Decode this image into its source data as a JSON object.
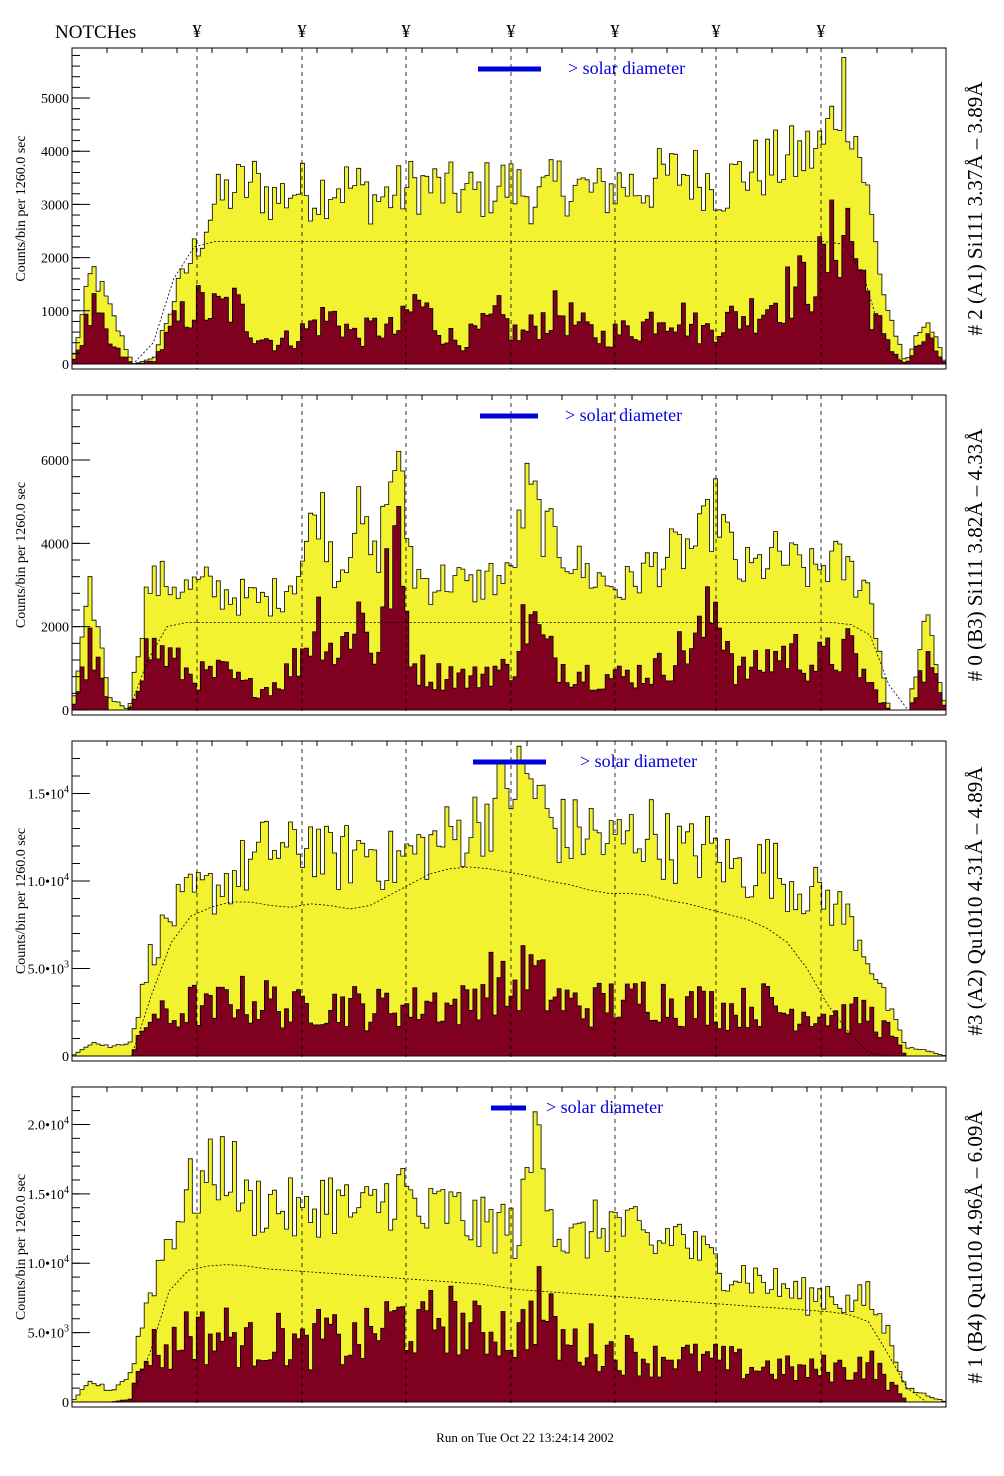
{
  "header": {
    "notches_label": "NOTCHes",
    "notch_symbol": "¥"
  },
  "footer": {
    "run_label": "Run on Tue Oct 22 13:24:14 2002"
  },
  "colors": {
    "total": "#f2f230",
    "background": "#800020",
    "marker": "#0000dd",
    "axis": "#000000"
  },
  "chart_data": [
    {
      "type": "bar",
      "title": "# 2 (A1) Si111  3.37Å – 3.89Å",
      "ylabel": "Counts/bin per   1260.0 sec",
      "legend": "> solar diameter",
      "ylim": [
        0,
        5940
      ],
      "yticks": [
        {
          "v": 0,
          "base": "0",
          "exp": ""
        },
        {
          "v": 1000,
          "base": "1000",
          "exp": ""
        },
        {
          "v": 2000,
          "base": "2000",
          "exp": ""
        },
        {
          "v": 3000,
          "base": "3000",
          "exp": ""
        },
        {
          "v": 4000,
          "base": "4000",
          "exp": ""
        },
        {
          "v": 5000,
          "base": "5000",
          "exp": ""
        }
      ],
      "total": [
        0,
        1800,
        900,
        0,
        100,
        1200,
        2100,
        3000,
        3300,
        3400,
        3100,
        3300,
        3200,
        3400,
        3300,
        3100,
        3200,
        3400,
        3300,
        3200,
        3200,
        3400,
        3300,
        3100,
        3400,
        3300,
        3200,
        3400,
        3300,
        3500,
        3600,
        3500,
        3300,
        3600,
        3700,
        3800,
        3900,
        4100,
        5300,
        3500,
        1200,
        0,
        900,
        0
      ],
      "background": [
        0,
        1000,
        300,
        0,
        50,
        700,
        1100,
        1000,
        1100,
        600,
        400,
        500,
        800,
        900,
        500,
        700,
        600,
        1200,
        700,
        400,
        600,
        900,
        500,
        800,
        1000,
        700,
        500,
        600,
        700,
        1000,
        900,
        600,
        800,
        900,
        1100,
        1300,
        1500,
        1800,
        2800,
        1500,
        400,
        0,
        500,
        0
      ],
      "model": [
        0,
        0,
        0,
        0,
        400,
        1600,
        2200,
        2300,
        2300,
        2300,
        2300,
        2300,
        2300,
        2300,
        2300,
        2300,
        2300,
        2300,
        2300,
        2300,
        2300,
        2300,
        2300,
        2300,
        2300,
        2300,
        2300,
        2300,
        2300,
        2300,
        2300,
        2300,
        2300,
        2300,
        2300,
        2300,
        2300,
        2300,
        2250,
        1600,
        300,
        0,
        0,
        0
      ]
    },
    {
      "type": "bar",
      "title": "# 0 (B3) Si111  3.82Å – 4.33Å",
      "ylabel": "Counts/bin per   1260.0 sec",
      "legend": "> solar diameter",
      "ylim": [
        0,
        7560
      ],
      "yticks": [
        {
          "v": 0,
          "base": "0",
          "exp": ""
        },
        {
          "v": 2000,
          "base": "2000",
          "exp": ""
        },
        {
          "v": 4000,
          "base": "4000",
          "exp": ""
        },
        {
          "v": 6000,
          "base": "6000",
          "exp": ""
        }
      ],
      "total": [
        0,
        2900,
        300,
        0,
        3000,
        3100,
        2900,
        3000,
        2800,
        2700,
        2600,
        2800,
        3400,
        5000,
        3200,
        4700,
        3500,
        6200,
        3300,
        3000,
        3200,
        2900,
        3200,
        3100,
        5300,
        4200,
        3800,
        3300,
        3100,
        2900,
        3300,
        3600,
        3800,
        4000,
        4900,
        3300,
        3400,
        3700,
        3500,
        3300,
        3600,
        3300,
        2900,
        0,
        0,
        2200,
        0
      ],
      "background": [
        0,
        1500,
        0,
        0,
        1500,
        1300,
        900,
        800,
        900,
        600,
        500,
        700,
        1300,
        2300,
        1200,
        2500,
        1300,
        4100,
        1100,
        800,
        900,
        700,
        1000,
        900,
        2300,
        1400,
        1000,
        900,
        800,
        800,
        900,
        1000,
        1400,
        1700,
        2600,
        900,
        1000,
        1300,
        1400,
        1100,
        1300,
        1400,
        600,
        0,
        0,
        1200,
        0
      ],
      "model": [
        0,
        0,
        0,
        0,
        1200,
        2000,
        2100,
        2100,
        2100,
        2100,
        2100,
        2100,
        2100,
        2100,
        2100,
        2100,
        2100,
        2100,
        2100,
        2100,
        2100,
        2100,
        2100,
        2100,
        2100,
        2100,
        2100,
        2100,
        2100,
        2100,
        2100,
        2100,
        2100,
        2100,
        2100,
        2100,
        2100,
        2100,
        2100,
        2100,
        2100,
        2050,
        1800,
        600,
        0,
        0,
        0
      ]
    },
    {
      "type": "bar",
      "title": "#3 (A2) Qu1010  4.31Å – 4.89Å",
      "ylabel": "Counts/bin per   1260.0 sec",
      "legend": "> solar diameter",
      "ylim": [
        0,
        18000
      ],
      "yticks": [
        {
          "v": 0,
          "base": "0",
          "exp": ""
        },
        {
          "v": 5000,
          "base": "5.0•10",
          "exp": "3"
        },
        {
          "v": 10000,
          "base": "1.0•10",
          "exp": "4"
        },
        {
          "v": 15000,
          "base": "1.5•10",
          "exp": "4"
        }
      ],
      "total": [
        0,
        800,
        500,
        900,
        6000,
        8000,
        9000,
        9500,
        10200,
        11000,
        12000,
        11500,
        12500,
        11000,
        11500,
        12000,
        11000,
        11500,
        12000,
        12500,
        13000,
        14000,
        15500,
        16000,
        13500,
        12500,
        13000,
        12000,
        12500,
        13000,
        12000,
        11500,
        12000,
        11000,
        10500,
        11000,
        10000,
        9500,
        9000,
        8000,
        6000,
        3000,
        500,
        300,
        0
      ],
      "background": [
        0,
        0,
        0,
        0,
        2500,
        2000,
        3000,
        2500,
        3500,
        3000,
        3200,
        2500,
        3000,
        2800,
        3000,
        2500,
        3000,
        2700,
        3200,
        2800,
        3000,
        4500,
        3500,
        5000,
        3500,
        3000,
        2800,
        3200,
        3000,
        3500,
        3200,
        2800,
        3000,
        2600,
        2800,
        3000,
        2500,
        2600,
        2400,
        2200,
        2500,
        1500,
        0,
        0,
        0
      ],
      "model": [
        0,
        0,
        0,
        0,
        3500,
        6500,
        8000,
        8500,
        8800,
        8800,
        8600,
        8500,
        8700,
        8600,
        8400,
        8600,
        9200,
        9800,
        10400,
        10700,
        10800,
        10700,
        10500,
        10300,
        10000,
        9800,
        9500,
        9300,
        9300,
        9200,
        8900,
        8700,
        8400,
        8100,
        7800,
        7300,
        6500,
        5000,
        3000,
        1500,
        300,
        0,
        0,
        0,
        0
      ]
    },
    {
      "type": "bar",
      "title": "# 1 (B4) Qu1010 4.96Å – 6.09Å",
      "ylabel": "Counts/bin per   1260.0 sec",
      "legend": "> solar diameter",
      "ylim": [
        0,
        22700
      ],
      "yticks": [
        {
          "v": 0,
          "base": "0",
          "exp": ""
        },
        {
          "v": 5000,
          "base": "5.0•10",
          "exp": "3"
        },
        {
          "v": 10000,
          "base": "1.0•10",
          "exp": "4"
        },
        {
          "v": 15000,
          "base": "1.5•10",
          "exp": "4"
        },
        {
          "v": 20000,
          "base": "2.0•10",
          "exp": "4"
        }
      ],
      "total": [
        0,
        1500,
        800,
        2000,
        8000,
        12000,
        15000,
        16000,
        17500,
        14000,
        14500,
        14000,
        13000,
        15000,
        14000,
        13500,
        14500,
        15500,
        13000,
        14000,
        13500,
        12500,
        13000,
        12000,
        20500,
        12000,
        11500,
        12500,
        13000,
        12000,
        11000,
        12500,
        11000,
        10000,
        9500,
        9000,
        8500,
        8000,
        7500,
        8000,
        7000,
        7500,
        5000,
        1000,
        500,
        0
      ],
      "background": [
        0,
        0,
        0,
        300,
        4000,
        3500,
        5500,
        4500,
        5000,
        4000,
        4500,
        4500,
        3800,
        5000,
        4000,
        4500,
        5500,
        6000,
        5000,
        6500,
        5500,
        5000,
        5500,
        4500,
        7500,
        4500,
        4000,
        4000,
        3500,
        3500,
        3000,
        3500,
        3000,
        3000,
        2800,
        2500,
        2500,
        2300,
        2200,
        2500,
        2300,
        3000,
        1500,
        0,
        0,
        0
      ],
      "model": [
        0,
        0,
        0,
        0,
        3500,
        8000,
        9500,
        9800,
        9900,
        9800,
        9600,
        9500,
        9400,
        9300,
        9200,
        9100,
        9000,
        8900,
        8800,
        8700,
        8600,
        8500,
        8300,
        8100,
        8000,
        7900,
        7800,
        7700,
        7600,
        7500,
        7400,
        7300,
        7200,
        7100,
        7000,
        6900,
        6800,
        6700,
        6600,
        6500,
        6300,
        5800,
        3500,
        1000,
        0,
        0
      ]
    }
  ]
}
